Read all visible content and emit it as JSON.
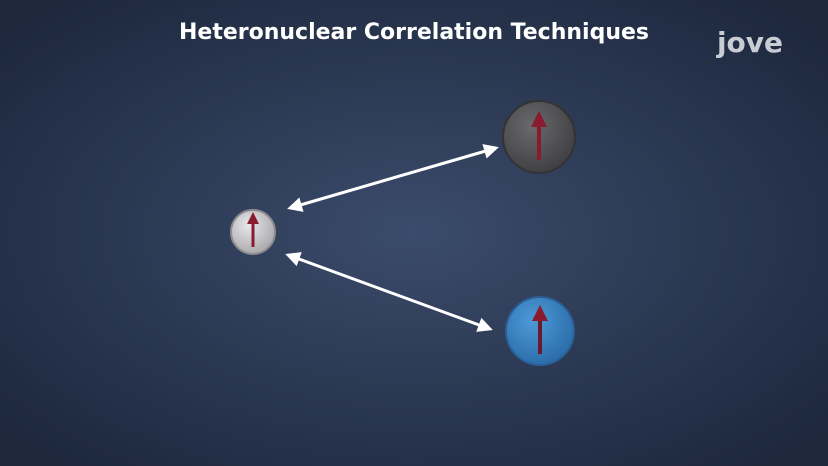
{
  "header": {
    "title": "Heteronuclear Correlation Techniques",
    "logo": "jove"
  }
}
